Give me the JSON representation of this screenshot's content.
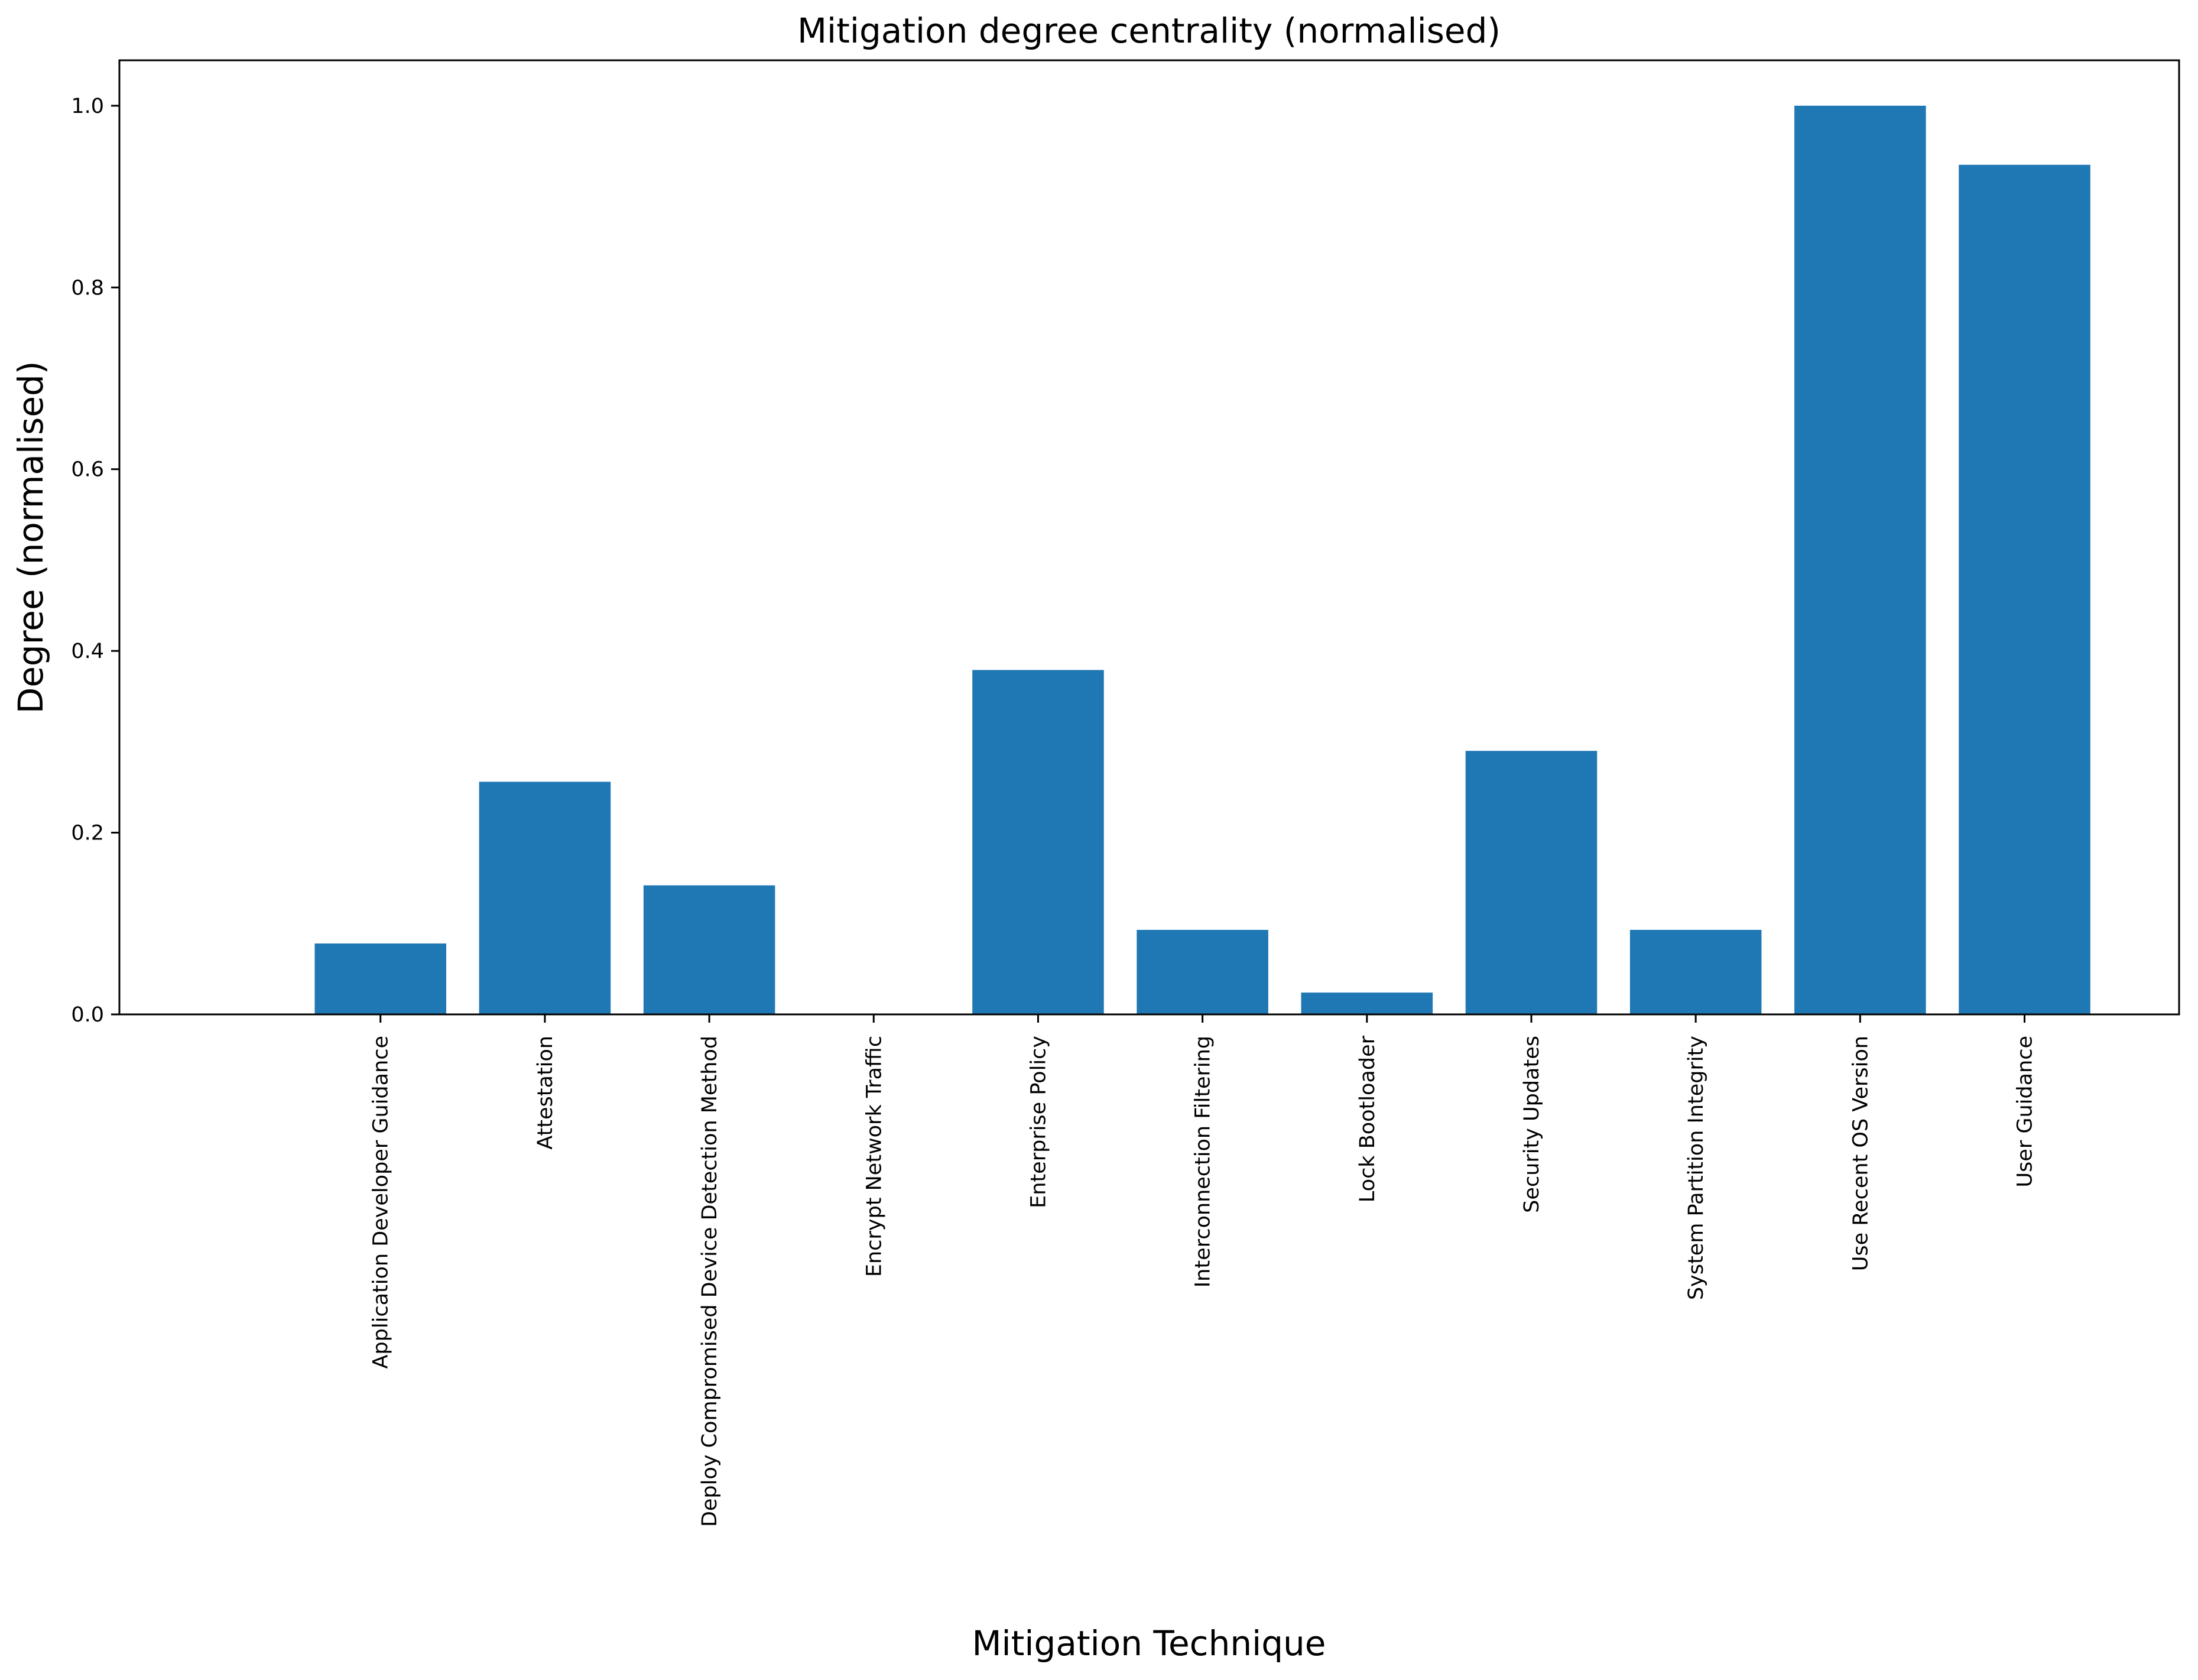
{
  "chart_data": {
    "type": "bar",
    "title": "Mitigation degree centrality (normalised)",
    "xlabel": "Mitigation Technique",
    "ylabel": "Degree (normalised)",
    "ylim": [
      0,
      1.05
    ],
    "yticks": [
      0.0,
      0.2,
      0.4,
      0.6,
      0.8,
      1.0
    ],
    "ytick_labels": [
      "0.0",
      "0.2",
      "0.4",
      "0.6",
      "0.8",
      "1.0"
    ],
    "grid": false,
    "bar_color": "#1f77b4",
    "categories": [
      "Application Developer Guidance",
      "Attestation",
      "Deploy Compromised Device Detection Method",
      "Encrypt Network Traffic",
      "Enterprise Policy",
      "Interconnection Filtering",
      "Lock Bootloader",
      "Security Updates",
      "System Partition Integrity",
      "Use Recent OS Version",
      "User Guidance"
    ],
    "values": [
      0.078,
      0.256,
      0.142,
      0.0,
      0.379,
      0.093,
      0.024,
      0.29,
      0.093,
      1.0,
      0.935
    ]
  }
}
